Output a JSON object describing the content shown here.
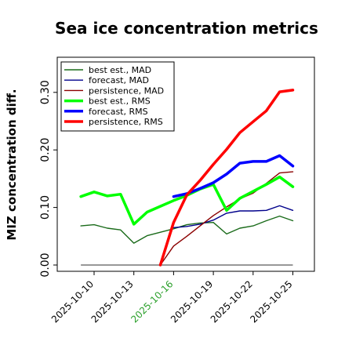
{
  "chart_data": {
    "type": "line",
    "title": "Sea ice concentration metrics",
    "xlabel": "",
    "ylabel": "MIZ concentration diff.",
    "ylim": [
      0.0,
      0.34
    ],
    "yticks": [
      0.0,
      0.1,
      0.2,
      0.3
    ],
    "ytick_labels": [
      "0.00",
      "0.10",
      "0.20",
      "0.30"
    ],
    "xlim": [
      "2025-10-08",
      "2025-10-25"
    ],
    "xtick_dates": [
      "2025-10-10",
      "2025-10-13",
      "2025-10-16",
      "2025-10-19",
      "2025-10-22",
      "2025-10-25"
    ],
    "xtick_labels": [
      "2025-10-10",
      "2025-10-13",
      "2025-10-16",
      "2025-10-19",
      "2025-10-22",
      "2025-10-25"
    ],
    "highlight_xtick_label": "2025-10-16",
    "highlight_color": "#2ca02c",
    "grid": false,
    "legend_position": "upper-left",
    "reference_line": 0.0,
    "series": [
      {
        "name": "best est., MAD",
        "color": "#1a6b1a",
        "style": "thin",
        "x": [
          "2025-10-09",
          "2025-10-10",
          "2025-10-11",
          "2025-10-12",
          "2025-10-13",
          "2025-10-14",
          "2025-10-15",
          "2025-10-16",
          "2025-10-17",
          "2025-10-18",
          "2025-10-19",
          "2025-10-20",
          "2025-10-21",
          "2025-10-22",
          "2025-10-23",
          "2025-10-24",
          "2025-10-25"
        ],
        "values": [
          0.068,
          0.07,
          0.064,
          0.061,
          0.038,
          0.051,
          0.057,
          0.063,
          0.07,
          0.073,
          0.074,
          0.054,
          0.064,
          0.068,
          0.077,
          0.085,
          0.077
        ]
      },
      {
        "name": "forecast,  MAD",
        "color": "#00008b",
        "style": "thin",
        "x": [
          "2025-10-16",
          "2025-10-17",
          "2025-10-18",
          "2025-10-19",
          "2025-10-20",
          "2025-10-21",
          "2025-10-22",
          "2025-10-23",
          "2025-10-24",
          "2025-10-25"
        ],
        "values": [
          0.065,
          0.067,
          0.071,
          0.078,
          0.09,
          0.094,
          0.094,
          0.095,
          0.103,
          0.095
        ]
      },
      {
        "name": "persistence, MAD",
        "color": "#8b0000",
        "style": "thin",
        "x": [
          "2025-10-15",
          "2025-10-16",
          "2025-10-17",
          "2025-10-18",
          "2025-10-19",
          "2025-10-20",
          "2025-10-21",
          "2025-10-22",
          "2025-10-23",
          "2025-10-24",
          "2025-10-25"
        ],
        "values": [
          0.0,
          0.033,
          0.05,
          0.068,
          0.086,
          0.101,
          0.115,
          0.125,
          0.142,
          0.16,
          0.162
        ]
      },
      {
        "name": "best est., RMS",
        "color": "#00ff00",
        "style": "thick",
        "x": [
          "2025-10-09",
          "2025-10-10",
          "2025-10-11",
          "2025-10-12",
          "2025-10-13",
          "2025-10-14",
          "2025-10-15",
          "2025-10-16",
          "2025-10-17",
          "2025-10-18",
          "2025-10-19",
          "2025-10-20",
          "2025-10-21",
          "2025-10-22",
          "2025-10-23",
          "2025-10-24",
          "2025-10-25"
        ],
        "values": [
          0.119,
          0.127,
          0.12,
          0.123,
          0.071,
          0.092,
          0.102,
          0.112,
          0.121,
          0.132,
          0.14,
          0.095,
          0.116,
          0.128,
          0.14,
          0.153,
          0.136
        ]
      },
      {
        "name": "forecast,  RMS",
        "color": "#0000ff",
        "style": "thick",
        "x": [
          "2025-10-16",
          "2025-10-17",
          "2025-10-18",
          "2025-10-19",
          "2025-10-20",
          "2025-10-21",
          "2025-10-22",
          "2025-10-23",
          "2025-10-24",
          "2025-10-25"
        ],
        "values": [
          0.119,
          0.124,
          0.133,
          0.143,
          0.158,
          0.177,
          0.18,
          0.18,
          0.19,
          0.172
        ]
      },
      {
        "name": "persistence, RMS",
        "color": "#ff0000",
        "style": "thick",
        "x": [
          "2025-10-15",
          "2025-10-16",
          "2025-10-17",
          "2025-10-18",
          "2025-10-19",
          "2025-10-20",
          "2025-10-21",
          "2025-10-22",
          "2025-10-23",
          "2025-10-24",
          "2025-10-25"
        ],
        "values": [
          0.0,
          0.074,
          0.122,
          0.147,
          0.175,
          0.201,
          0.23,
          0.249,
          0.268,
          0.301,
          0.304
        ]
      }
    ]
  }
}
